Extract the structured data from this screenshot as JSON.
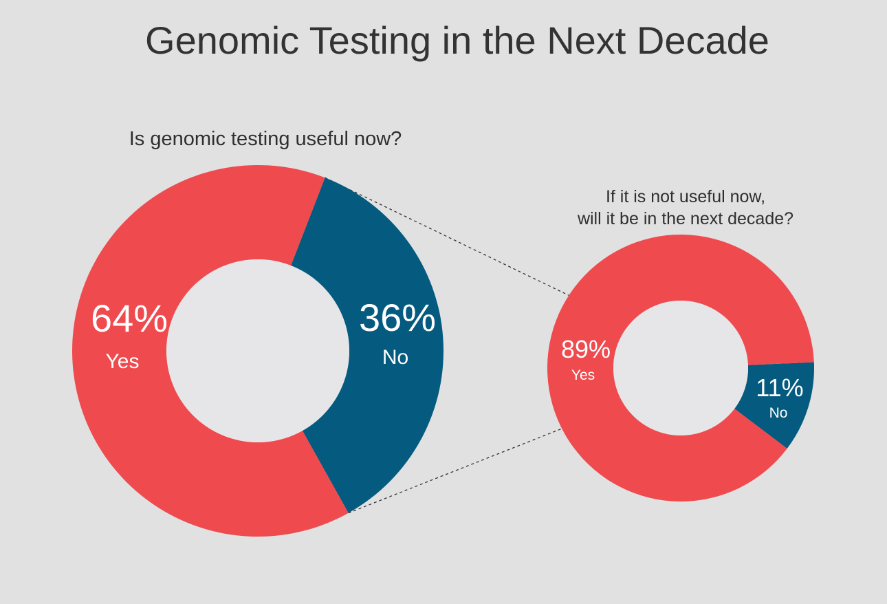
{
  "chart_data": [
    {
      "type": "pie",
      "donut": true,
      "title": "Genomic Testing in the Next Decade",
      "subtitle": "Is genomic testing useful now?",
      "slices": [
        {
          "label": "Yes",
          "value": 64,
          "display": "64%",
          "color": "#ef4a4e"
        },
        {
          "label": "No",
          "value": 36,
          "display": "36%",
          "color": "#045a7f"
        }
      ]
    },
    {
      "type": "pie",
      "donut": true,
      "subtitle_lines": [
        "If it is not useful now,",
        "will it be in the next decade?"
      ],
      "slices": [
        {
          "label": "Yes",
          "value": 89,
          "display": "89%",
          "color": "#ef4a4e"
        },
        {
          "label": "No",
          "value": 11,
          "display": "11%",
          "color": "#045a7f"
        }
      ]
    }
  ],
  "colors": {
    "background": "#e1e1e1",
    "hole": "#e6e6e8",
    "connector": "#333333"
  }
}
